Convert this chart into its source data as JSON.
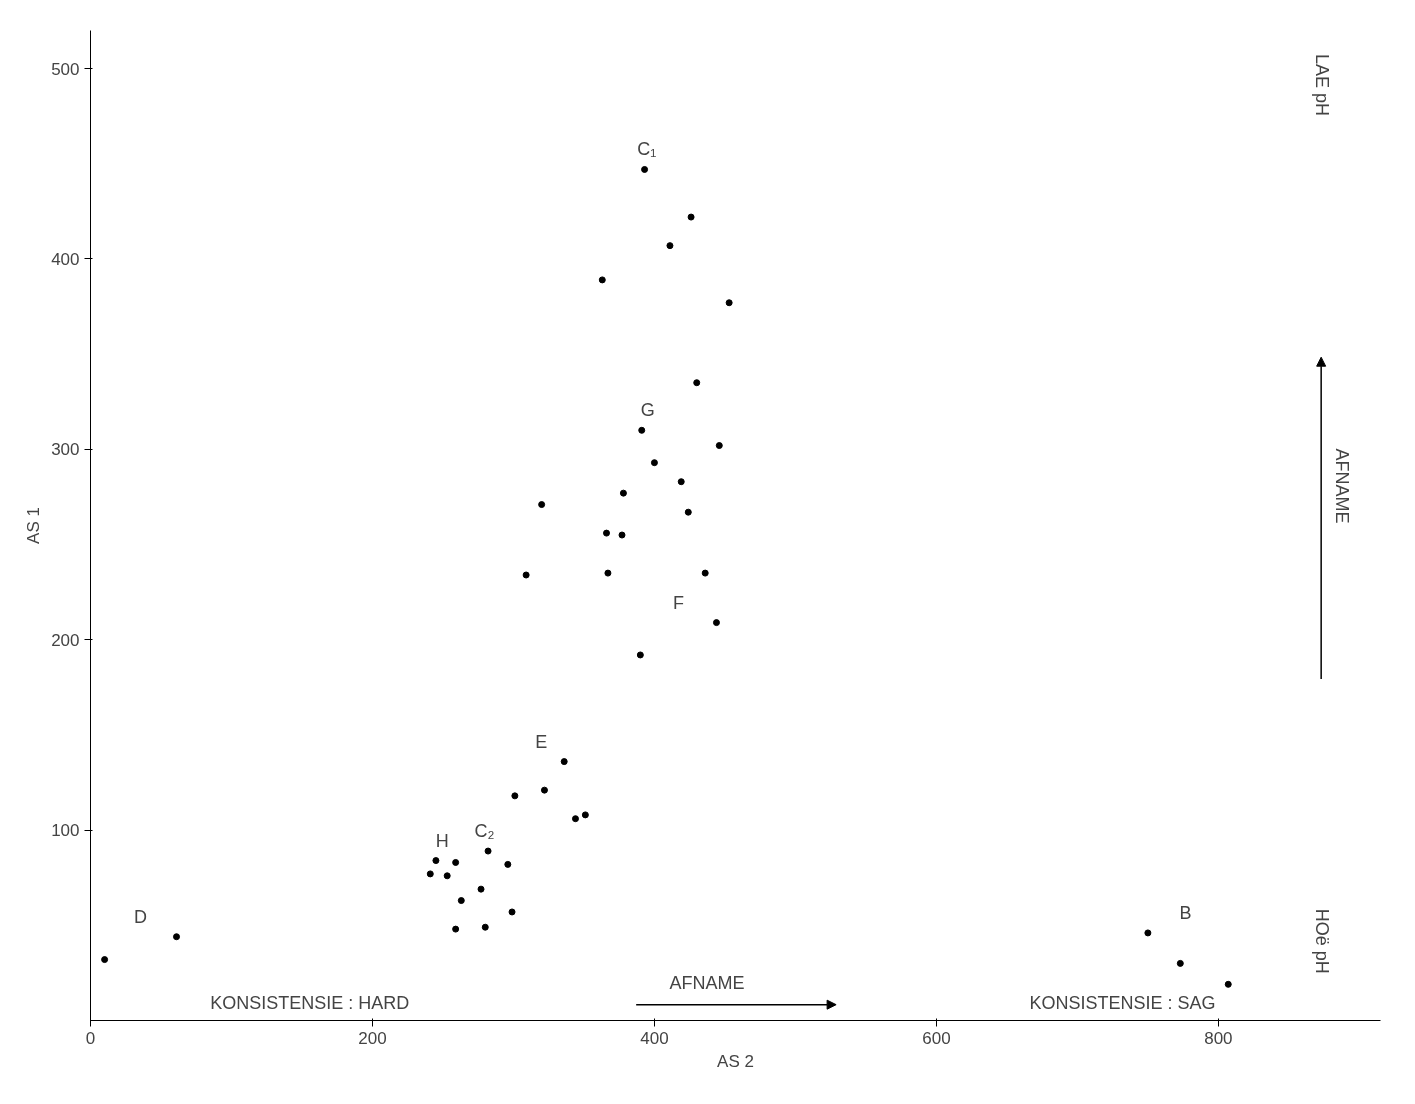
{
  "chart_data": {
    "type": "scatter",
    "xlabel": "AS 2",
    "ylabel": "AS 1",
    "xlim": [
      0,
      915
    ],
    "ylim": [
      0,
      520
    ],
    "xticks": [
      0,
      200,
      400,
      600,
      800
    ],
    "yticks": [
      100,
      200,
      300,
      400,
      500
    ],
    "grid": false,
    "legend": false,
    "marker": "circle",
    "series": [
      {
        "name": "C₁",
        "color": "#000000",
        "x": [
          393,
          426,
          411,
          363,
          453,
          430,
          446,
          320,
          309
        ],
        "values": [
          447,
          422,
          407,
          389,
          377,
          335,
          302,
          271,
          234
        ]
      },
      {
        "name": "G",
        "color": "#000000",
        "x": [
          391,
          400,
          419,
          378,
          424,
          366,
          377,
          367,
          436
        ],
        "values": [
          310,
          293,
          283,
          277,
          267,
          256,
          255,
          235,
          235
        ]
      },
      {
        "name": "F",
        "color": "#000000",
        "x": [
          444,
          390
        ],
        "values": [
          209,
          192
        ]
      },
      {
        "name": "E",
        "color": "#000000",
        "x": [
          336,
          301,
          322
        ],
        "values": [
          136,
          118,
          121
        ]
      },
      {
        "color": "#000000",
        "x": [
          344,
          351
        ],
        "values": [
          106,
          108
        ]
      },
      {
        "name": "H",
        "color": "#000000",
        "x": [
          245,
          259,
          241,
          253
        ],
        "values": [
          84,
          83,
          77,
          76
        ]
      },
      {
        "name": "C₂",
        "color": "#000000",
        "x": [
          282,
          296,
          277,
          263,
          299,
          259,
          280
        ],
        "values": [
          89,
          82,
          69,
          63,
          57,
          48,
          49
        ]
      },
      {
        "name": "D",
        "color": "#000000",
        "x": [
          61,
          10
        ],
        "values": [
          44,
          32
        ]
      },
      {
        "name": "B",
        "color": "#000000",
        "x": [
          750,
          773,
          807
        ],
        "values": [
          46,
          30,
          19
        ]
      }
    ],
    "annotations": [
      "KONSISTENSIE : HARD",
      "AFNAME",
      "KONSISTENSIE : SAG",
      "LAE pH",
      "AFNAME",
      "HOë pH"
    ]
  }
}
